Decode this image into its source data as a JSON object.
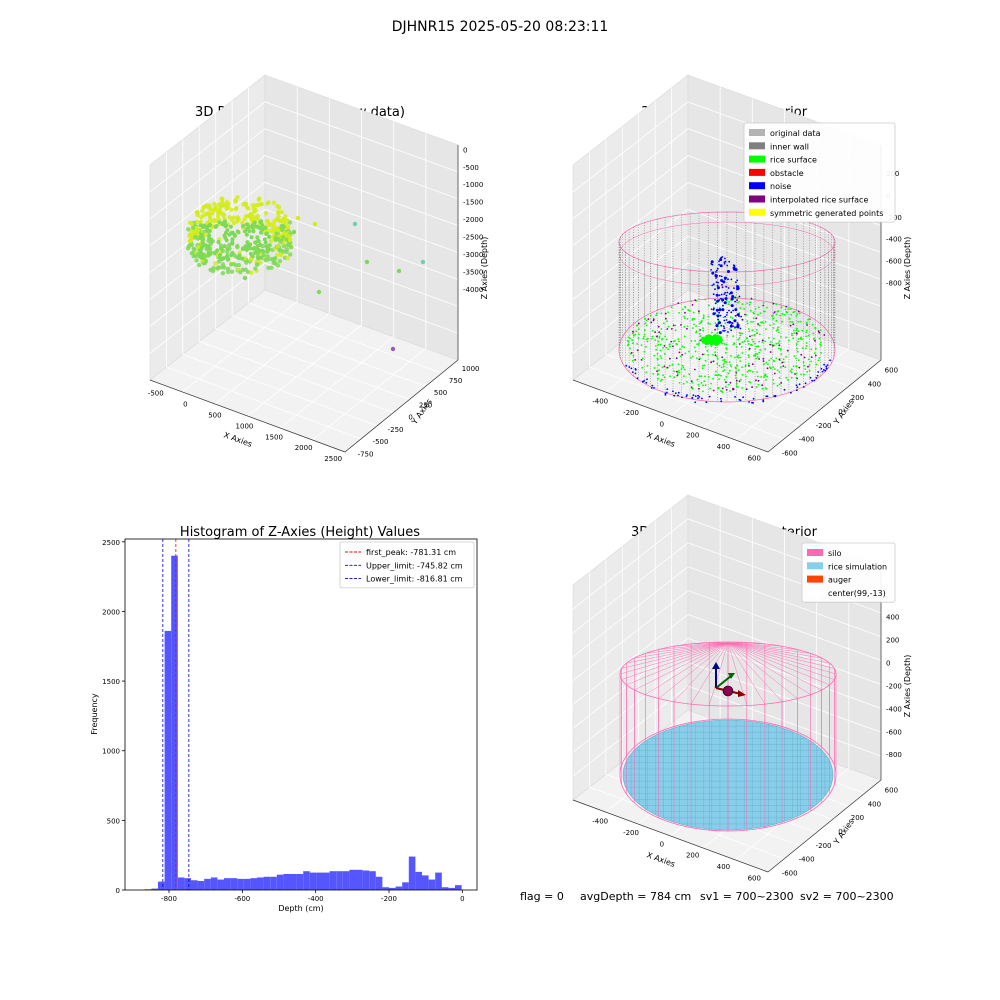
{
  "figure": {
    "title": "DJHNR15 2025-05-20 08:23:11",
    "footer": {
      "flag": "flag = 0",
      "avg_depth": "avgDepth = 784 cm",
      "sv1": "sv1 = 700~2300",
      "sv2": "sv2 = 700~2300"
    }
  },
  "chart_data": [
    {
      "type": "scatter",
      "title": "3D Plot of Silo Interior(row data)",
      "xlabel": "X Axies",
      "ylabel": "Y Axies",
      "zlabel": "Z Axies (Depth)",
      "x_ticks": [
        "-500",
        "0",
        "500",
        "1000",
        "1500",
        "2000",
        "2500"
      ],
      "y_ticks": [
        "-750",
        "-500",
        "-250",
        "0",
        "250",
        "500",
        "750",
        "1000"
      ],
      "z_ticks": [
        "0",
        "-500",
        "-1000",
        "-1500",
        "-2000",
        "-2500",
        "-3000",
        "-3500",
        "-4000"
      ],
      "xlim": [
        -600,
        2700
      ],
      "ylim": [
        -800,
        1100
      ],
      "zlim": [
        -4100,
        100
      ],
      "colors": {
        "main": "#7ed957",
        "fringe": "#d4ec1a",
        "outlier": "#6fcfa8",
        "outlier2": "#9b59b6"
      }
    },
    {
      "type": "scatter",
      "title": "3D classify of Silo Interior",
      "xlabel": "X Axies",
      "ylabel": "Y Axies",
      "zlabel": "Z Axies (Depth)",
      "x_ticks": [
        "-400",
        "-200",
        "0",
        "200",
        "400",
        "600"
      ],
      "y_ticks": [
        "-600",
        "-400",
        "-200",
        "0",
        "200",
        "400",
        "600"
      ],
      "z_ticks": [
        "-800",
        "-600",
        "-400",
        "-200",
        "0",
        "200"
      ],
      "legend_position": "top-right",
      "legend": [
        {
          "label": "original data",
          "color": "#b3b3b3"
        },
        {
          "label": "inner wall",
          "color": "#808080"
        },
        {
          "label": "rice surface",
          "color": "#00ff00"
        },
        {
          "label": "obstacle",
          "color": "#ff0000"
        },
        {
          "label": "noise",
          "color": "#0000ff"
        },
        {
          "label": "interpolated rice surface",
          "color": "#800080"
        },
        {
          "label": "symmetric generated points",
          "color": "#ffff00"
        }
      ],
      "colors": {
        "silo_outline": "#ff69b4"
      }
    },
    {
      "type": "bar",
      "title": "Histogram of Z-Axies (Height) Values",
      "xlabel": "Depth (cm)",
      "ylabel": "Frequency",
      "xlim": [
        -920,
        40
      ],
      "ylim": [
        0,
        2520
      ],
      "x_ticks": [
        -800,
        -600,
        -400,
        -200,
        0
      ],
      "y_ticks": [
        0,
        500,
        1000,
        1500,
        2000,
        2500
      ],
      "bar_color": "#4d4dff",
      "bin_width": 18,
      "bins": [
        {
          "x": -857,
          "value": 5
        },
        {
          "x": -839,
          "value": 10
        },
        {
          "x": -821,
          "value": 60
        },
        {
          "x": -803,
          "value": 1860
        },
        {
          "x": -785,
          "value": 2400
        },
        {
          "x": -767,
          "value": 90
        },
        {
          "x": -749,
          "value": 85
        },
        {
          "x": -731,
          "value": 70
        },
        {
          "x": -713,
          "value": 65
        },
        {
          "x": -695,
          "value": 80
        },
        {
          "x": -677,
          "value": 90
        },
        {
          "x": -659,
          "value": 75
        },
        {
          "x": -641,
          "value": 85
        },
        {
          "x": -623,
          "value": 85
        },
        {
          "x": -605,
          "value": 80
        },
        {
          "x": -587,
          "value": 80
        },
        {
          "x": -569,
          "value": 85
        },
        {
          "x": -551,
          "value": 90
        },
        {
          "x": -533,
          "value": 95
        },
        {
          "x": -515,
          "value": 95
        },
        {
          "x": -497,
          "value": 110
        },
        {
          "x": -479,
          "value": 115
        },
        {
          "x": -461,
          "value": 115
        },
        {
          "x": -443,
          "value": 115
        },
        {
          "x": -425,
          "value": 135
        },
        {
          "x": -407,
          "value": 125
        },
        {
          "x": -389,
          "value": 125
        },
        {
          "x": -371,
          "value": 125
        },
        {
          "x": -353,
          "value": 135
        },
        {
          "x": -335,
          "value": 135
        },
        {
          "x": -317,
          "value": 135
        },
        {
          "x": -299,
          "value": 145
        },
        {
          "x": -281,
          "value": 145
        },
        {
          "x": -263,
          "value": 140
        },
        {
          "x": -245,
          "value": 135
        },
        {
          "x": -227,
          "value": 95
        },
        {
          "x": -209,
          "value": 20
        },
        {
          "x": -191,
          "value": 15
        },
        {
          "x": -173,
          "value": 25
        },
        {
          "x": -155,
          "value": 55
        },
        {
          "x": -137,
          "value": 240
        },
        {
          "x": -119,
          "value": 130
        },
        {
          "x": -101,
          "value": 105
        },
        {
          "x": -83,
          "value": 75
        },
        {
          "x": -65,
          "value": 125
        },
        {
          "x": -47,
          "value": 20
        },
        {
          "x": -29,
          "value": 15
        },
        {
          "x": -11,
          "value": 35
        }
      ],
      "vlines": [
        {
          "x": -781.31,
          "color": "#ff0000"
        },
        {
          "x": -745.82,
          "color": "#0000cc"
        },
        {
          "x": -816.81,
          "color": "#0000cc"
        }
      ],
      "legend_position": "top-right",
      "legend": [
        {
          "label": "first_peak: -781.31 cm",
          "color": "#ff0000"
        },
        {
          "label": "Upper_limit: -745.82 cm",
          "color": "#0000cc"
        },
        {
          "label": "Lower_limit: -816.81 cm",
          "color": "#0000cc"
        }
      ]
    },
    {
      "type": "surface",
      "title": "3D simulation of Silo Interior",
      "xlabel": "X Axies",
      "ylabel": "Y Axies",
      "zlabel": "Z Axies (Depth)",
      "x_ticks": [
        "-400",
        "-200",
        "0",
        "200",
        "400",
        "600"
      ],
      "y_ticks": [
        "-600",
        "-400",
        "-200",
        "0",
        "200",
        "400",
        "600"
      ],
      "z_ticks": [
        "-800",
        "-600",
        "-400",
        "-200",
        "0",
        "200",
        "400"
      ],
      "legend_position": "top-right",
      "legend": [
        {
          "label": "silo",
          "color": "#ff69b4"
        },
        {
          "label": "rice simulation",
          "color": "#87ceeb"
        },
        {
          "label": "auger",
          "color": "#ff4500"
        },
        {
          "label": "center(99,-13)",
          "color": "#ffffff"
        }
      ],
      "colors": {
        "auger_ball": "#8b0050"
      }
    }
  ]
}
